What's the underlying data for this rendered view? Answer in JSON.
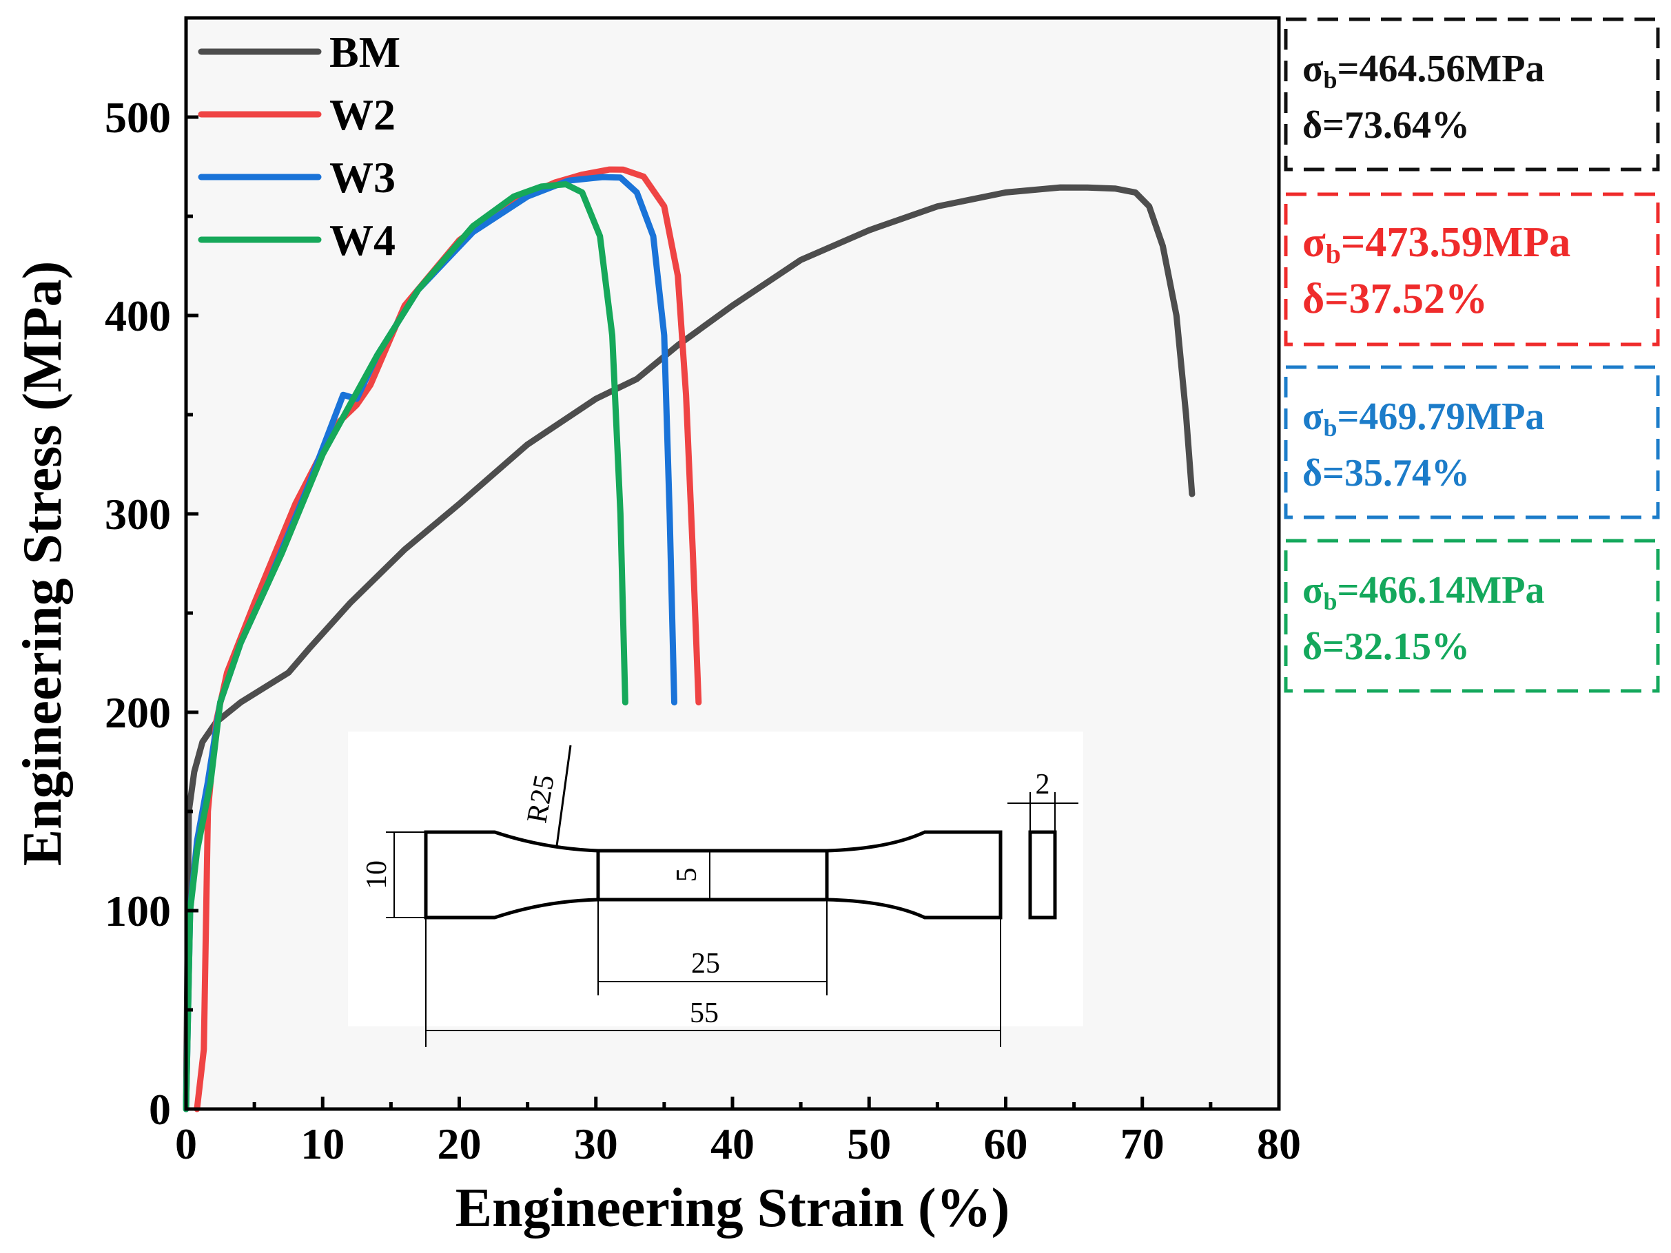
{
  "chart_data": {
    "type": "line",
    "title": "",
    "xlabel": "Engineering Strain (%)",
    "ylabel": "Engineering Stress (MPa)",
    "xlim": [
      0,
      80
    ],
    "ylim": [
      0,
      550
    ],
    "xticks": [
      0,
      10,
      20,
      30,
      40,
      50,
      60,
      70,
      80
    ],
    "yticks": [
      0,
      100,
      200,
      300,
      400,
      500
    ],
    "legend_position": "top-left",
    "grid": false,
    "series": [
      {
        "name": "BM",
        "color": "#4d4d4d",
        "x": [
          0,
          0.2,
          0.6,
          1.2,
          2.2,
          4,
          7.5,
          9,
          12,
          16,
          20,
          25,
          30,
          33,
          36,
          40,
          45,
          50,
          55,
          60,
          64,
          66,
          68,
          69.5,
          70.5,
          71.5,
          72.5,
          73.2,
          73.64
        ],
        "y": [
          0,
          150,
          170,
          185,
          195,
          205,
          220,
          232,
          255,
          282,
          305,
          335,
          358,
          368,
          385,
          405,
          428,
          443,
          455,
          462,
          464.56,
          464.5,
          464,
          462,
          455,
          435,
          400,
          350,
          310
        ]
      },
      {
        "name": "W2",
        "color": "#ef4444",
        "x": [
          0.8,
          1.3,
          1.6,
          2.2,
          3,
          5,
          8,
          11,
          12.5,
          13.5,
          16,
          20,
          24,
          27,
          29,
          31,
          32,
          33.5,
          35,
          36,
          36.6,
          37.1,
          37.52
        ],
        "y": [
          0,
          30,
          150,
          195,
          220,
          255,
          305,
          345,
          355,
          365,
          405,
          438,
          458,
          467,
          471,
          473.59,
          473.5,
          470,
          455,
          420,
          360,
          280,
          205
        ]
      },
      {
        "name": "W3",
        "color": "#1a73d8",
        "x": [
          0,
          0.3,
          0.8,
          1.6,
          2.5,
          4,
          6,
          9,
          11.5,
          12.5,
          14,
          17,
          21,
          25,
          28,
          30.5,
          31.8,
          33,
          34.2,
          35,
          35.4,
          35.74
        ],
        "y": [
          0,
          100,
          135,
          165,
          205,
          235,
          265,
          315,
          360,
          358,
          380,
          413,
          442,
          460,
          468,
          469.79,
          469.5,
          462,
          440,
          390,
          300,
          205
        ]
      },
      {
        "name": "W4",
        "color": "#16a85a",
        "x": [
          0,
          0.3,
          0.8,
          1.8,
          2.5,
          4,
          7,
          10,
          12,
          14,
          17,
          21,
          24,
          26,
          27.8,
          29,
          30.3,
          31.2,
          31.8,
          32.15
        ],
        "y": [
          0,
          100,
          130,
          165,
          205,
          235,
          280,
          330,
          355,
          380,
          413,
          445,
          460,
          465,
          466.14,
          462,
          440,
          390,
          300,
          205
        ]
      }
    ]
  },
  "legend": {
    "items": [
      {
        "label": "BM",
        "color": "#4d4d4d"
      },
      {
        "label": "W2",
        "color": "#ef4444"
      },
      {
        "label": "W3",
        "color": "#1a73d8"
      },
      {
        "label": "W4",
        "color": "#16a85a"
      }
    ]
  },
  "annotations": [
    {
      "color": "#111111",
      "sigma_value": "=464.56MPa",
      "delta_label": "δ=73.64%"
    },
    {
      "color": "#ef2b2b",
      "sigma_value": "=473.59MPa",
      "delta_label": "δ=37.52%"
    },
    {
      "color": "#1c7cc9",
      "sigma_value": "=469.79MPa",
      "delta_label": "δ=35.74%"
    },
    {
      "color": "#14a85c",
      "sigma_value": "=466.14MPa",
      "delta_label": "δ=32.15%"
    }
  ],
  "annotation_symbols": {
    "sigma": "σ",
    "subscript": "b"
  },
  "inset": {
    "radius_label": "R25",
    "height_label": "10",
    "width_label": "5",
    "gauge_label": "25",
    "total_label": "55",
    "thickness_label": "2"
  },
  "colors": {
    "plot_background": "#f7f7f7",
    "axis": "#000000"
  }
}
